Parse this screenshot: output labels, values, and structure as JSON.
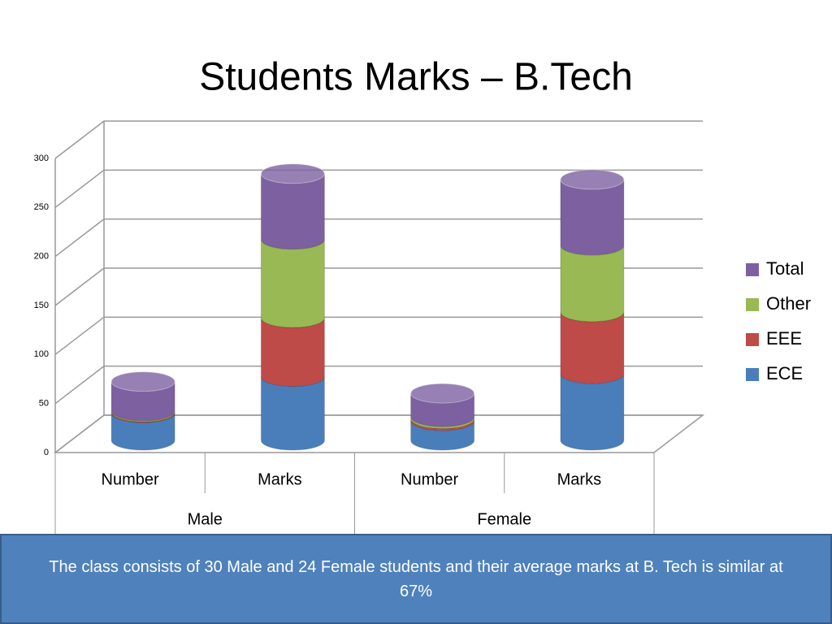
{
  "chart_data": {
    "type": "bar",
    "stacked": true,
    "title": "Students Marks – B.Tech",
    "categories": [
      "Number",
      "Marks",
      "Number",
      "Marks"
    ],
    "groups": [
      "Male",
      "Female"
    ],
    "series": [
      {
        "name": "ECE",
        "color": "#4a7ebb",
        "values": [
          28,
          65,
          20,
          68
        ]
      },
      {
        "name": "EEE",
        "color": "#be4b48",
        "values": [
          1,
          60,
          2,
          63
        ]
      },
      {
        "name": "Other",
        "color": "#98b954",
        "values": [
          1,
          80,
          2,
          68
        ]
      },
      {
        "name": "Total",
        "color": "#7d60a0",
        "values": [
          30,
          67,
          24,
          67
        ]
      }
    ],
    "ylim": [
      0,
      300
    ],
    "yticks": [
      0,
      50,
      100,
      150,
      200,
      250,
      300
    ],
    "grid": true,
    "legend": "right"
  },
  "caption": "The class consists of 30 Male and 24 Female students and their average marks at B. Tech is similar at 67%"
}
